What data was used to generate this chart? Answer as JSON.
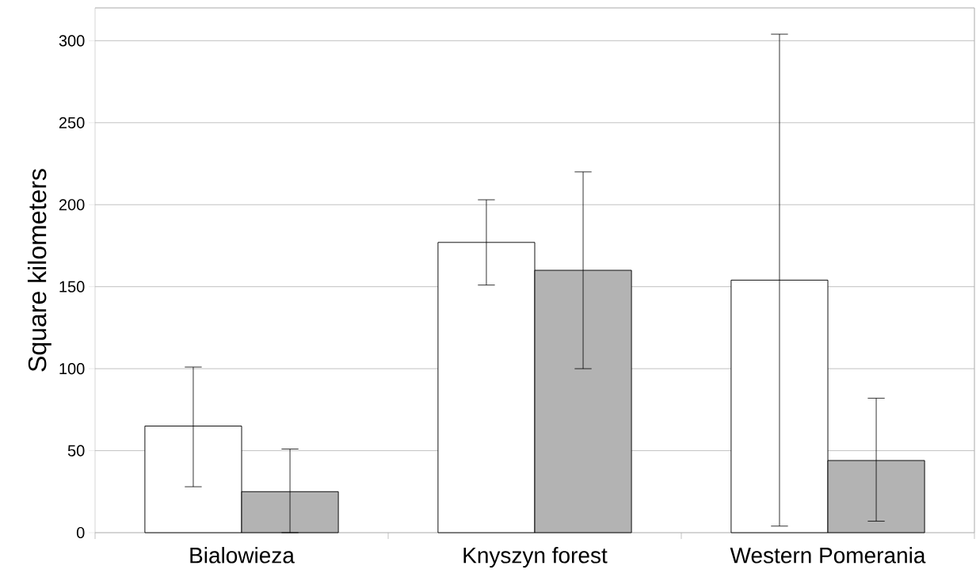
{
  "chart_data": {
    "type": "bar",
    "ylabel": "Square kilometers",
    "categories": [
      "Bialowieza",
      "Knyszyn forest",
      "Western Pomerania"
    ],
    "series": [
      {
        "color": "#ffffff",
        "values": [
          65,
          177,
          154
        ],
        "errors": [
          [
            28,
            101
          ],
          [
            151,
            203
          ],
          [
            4,
            304
          ]
        ]
      },
      {
        "color": "#b3b3b3",
        "values": [
          25,
          160,
          44
        ],
        "errors": [
          [
            0,
            51
          ],
          [
            100,
            220
          ],
          [
            7,
            82
          ]
        ]
      }
    ],
    "ylim": [
      0,
      320
    ],
    "yticks": [
      0,
      50,
      100,
      150,
      200,
      250,
      300
    ],
    "grid": "y"
  }
}
